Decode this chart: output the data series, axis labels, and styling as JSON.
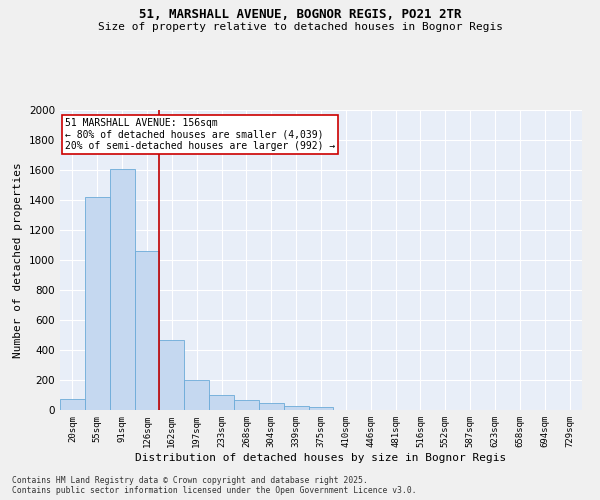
{
  "title_line1": "51, MARSHALL AVENUE, BOGNOR REGIS, PO21 2TR",
  "title_line2": "Size of property relative to detached houses in Bognor Regis",
  "xlabel": "Distribution of detached houses by size in Bognor Regis",
  "ylabel": "Number of detached properties",
  "categories": [
    "20sqm",
    "55sqm",
    "91sqm",
    "126sqm",
    "162sqm",
    "197sqm",
    "233sqm",
    "268sqm",
    "304sqm",
    "339sqm",
    "375sqm",
    "410sqm",
    "446sqm",
    "481sqm",
    "516sqm",
    "552sqm",
    "587sqm",
    "623sqm",
    "658sqm",
    "694sqm",
    "729sqm"
  ],
  "values": [
    75,
    1420,
    1610,
    1060,
    470,
    200,
    100,
    65,
    45,
    30,
    20,
    0,
    0,
    0,
    0,
    0,
    0,
    0,
    0,
    0,
    0
  ],
  "bar_color": "#c5d8f0",
  "bar_edge_color": "#6baad8",
  "highlight_color": "#c00000",
  "annotation_text": "51 MARSHALL AVENUE: 156sqm\n← 80% of detached houses are smaller (4,039)\n20% of semi-detached houses are larger (992) →",
  "annotation_box_color": "#ffffff",
  "annotation_box_edge": "#cc0000",
  "vline_x_index": 3.5,
  "ylim": [
    0,
    2000
  ],
  "yticks": [
    0,
    200,
    400,
    600,
    800,
    1000,
    1200,
    1400,
    1600,
    1800,
    2000
  ],
  "background_color": "#e8eef8",
  "grid_color": "#ffffff",
  "fig_background": "#f0f0f0",
  "footer_line1": "Contains HM Land Registry data © Crown copyright and database right 2025.",
  "footer_line2": "Contains public sector information licensed under the Open Government Licence v3.0."
}
